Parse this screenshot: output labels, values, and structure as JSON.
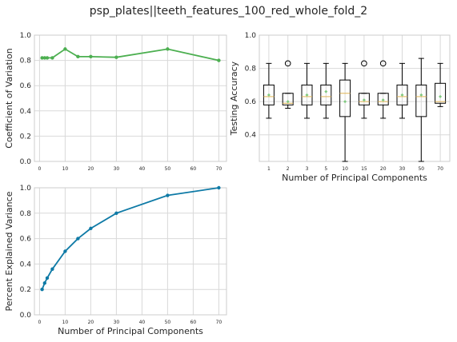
{
  "figure": {
    "suptitle": "psp_plates||teeth_features_100_red_whole_fold_2"
  },
  "chart_data": [
    {
      "id": "cv",
      "type": "line",
      "title": "",
      "xlabel": "",
      "ylabel": "Coefficient of Variation",
      "xlim": [
        -2,
        73
      ],
      "ylim": [
        0,
        1.0
      ],
      "xticks": [
        0,
        10,
        20,
        30,
        40,
        50,
        60,
        70
      ],
      "yticks": [
        0.0,
        0.2,
        0.4,
        0.6,
        0.8,
        1.0
      ],
      "grid": true,
      "color": "#4caf50",
      "series": [
        {
          "x": [
            1,
            2,
            3,
            5,
            10,
            15,
            20,
            30,
            50,
            70
          ],
          "y": [
            0.82,
            0.82,
            0.82,
            0.82,
            0.89,
            0.83,
            0.83,
            0.825,
            0.89,
            0.8
          ]
        }
      ]
    },
    {
      "id": "acc",
      "type": "box",
      "title": "",
      "xlabel": "Number of Principal Components",
      "ylabel": "Testing Accuracy",
      "ylim": [
        0.24,
        1.0
      ],
      "yticks": [
        0.4,
        0.6,
        0.8,
        1.0
      ],
      "grid": true,
      "categories": [
        "1",
        "2",
        "3",
        "5",
        "10",
        "15",
        "20",
        "30",
        "50",
        "70"
      ],
      "boxes": [
        {
          "whislo": 0.5,
          "q1": 0.58,
          "med": 0.63,
          "q3": 0.7,
          "whishi": 0.83,
          "mean": 0.64,
          "fliers": []
        },
        {
          "whislo": 0.56,
          "q1": 0.58,
          "med": 0.59,
          "q3": 0.65,
          "whishi": 0.65,
          "mean": 0.6,
          "fliers": [
            0.83
          ]
        },
        {
          "whislo": 0.5,
          "q1": 0.58,
          "med": 0.63,
          "q3": 0.7,
          "whishi": 0.83,
          "mean": 0.64,
          "fliers": []
        },
        {
          "whislo": 0.5,
          "q1": 0.58,
          "med": 0.63,
          "q3": 0.7,
          "whishi": 0.83,
          "mean": 0.66,
          "fliers": []
        },
        {
          "whislo": 0.24,
          "q1": 0.51,
          "med": 0.65,
          "q3": 0.73,
          "whishi": 0.83,
          "mean": 0.6,
          "fliers": []
        },
        {
          "whislo": 0.5,
          "q1": 0.58,
          "med": 0.6,
          "q3": 0.65,
          "whishi": 0.65,
          "mean": 0.61,
          "fliers": [
            0.83
          ]
        },
        {
          "whislo": 0.5,
          "q1": 0.58,
          "med": 0.6,
          "q3": 0.65,
          "whishi": 0.65,
          "mean": 0.61,
          "fliers": [
            0.83
          ]
        },
        {
          "whislo": 0.5,
          "q1": 0.58,
          "med": 0.63,
          "q3": 0.7,
          "whishi": 0.83,
          "mean": 0.64,
          "fliers": []
        },
        {
          "whislo": 0.24,
          "q1": 0.51,
          "med": 0.63,
          "q3": 0.7,
          "whishi": 0.86,
          "mean": 0.64,
          "fliers": []
        },
        {
          "whislo": 0.57,
          "q1": 0.59,
          "med": 0.6,
          "q3": 0.71,
          "whishi": 0.83,
          "mean": 0.63,
          "fliers": []
        }
      ]
    },
    {
      "id": "pev",
      "type": "line",
      "title": "",
      "xlabel": "Number of Principal Components",
      "ylabel": "Percent Explained Variance",
      "xlim": [
        -2,
        73
      ],
      "ylim": [
        0,
        1.0
      ],
      "xticks": [
        0,
        10,
        20,
        30,
        40,
        50,
        60,
        70
      ],
      "yticks": [
        0.0,
        0.2,
        0.4,
        0.6,
        0.8,
        1.0
      ],
      "grid": true,
      "color": "#0e7aa6",
      "series": [
        {
          "x": [
            1,
            2,
            3,
            5,
            10,
            15,
            20,
            30,
            50,
            70
          ],
          "y": [
            0.2,
            0.25,
            0.29,
            0.36,
            0.5,
            0.6,
            0.68,
            0.8,
            0.94,
            1.0
          ]
        }
      ]
    }
  ]
}
